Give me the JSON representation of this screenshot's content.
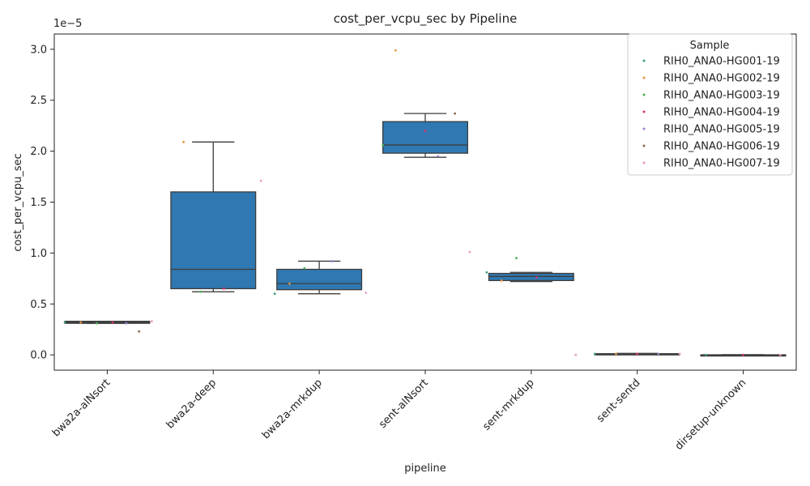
{
  "chart_data": {
    "type": "box",
    "title": "cost_per_vcpu_sec by Pipeline",
    "xlabel": "pipeline",
    "ylabel": "cost_per_vcpu_sec",
    "y_multiplier_label": "1e−5",
    "ylim": [
      -0.15,
      3.15
    ],
    "yticks": [
      0.0,
      0.5,
      1.0,
      1.5,
      2.0,
      2.5,
      3.0
    ],
    "ytick_labels": [
      "0.0",
      "0.5",
      "1.0",
      "1.5",
      "2.0",
      "2.5",
      "3.0"
    ],
    "categories": [
      "bwa2a-alNsort",
      "bwa2a-deep",
      "bwa2a-mrkdup",
      "sent-alNsort",
      "sent-mrkdup",
      "sent-sentd",
      "dirsetup-unknown"
    ],
    "box_color": "#2f78b1",
    "boxes": [
      {
        "q1": 0.31,
        "median": 0.32,
        "q3": 0.33,
        "whisker_low": 0.31,
        "whisker_high": 0.33
      },
      {
        "q1": 0.65,
        "median": 0.84,
        "q3": 1.6,
        "whisker_low": 0.62,
        "whisker_high": 2.09
      },
      {
        "q1": 0.64,
        "median": 0.7,
        "q3": 0.84,
        "whisker_low": 0.6,
        "whisker_high": 0.92
      },
      {
        "q1": 1.98,
        "median": 2.06,
        "q3": 2.29,
        "whisker_low": 1.94,
        "whisker_high": 2.37
      },
      {
        "q1": 0.73,
        "median": 0.77,
        "q3": 0.8,
        "whisker_low": 0.72,
        "whisker_high": 0.81
      },
      {
        "q1": 0.005,
        "median": 0.008,
        "q3": 0.012,
        "whisker_low": 0.003,
        "whisker_high": 0.015
      },
      {
        "q1": -0.003,
        "median": -0.002,
        "q3": 0.001,
        "whisker_low": -0.004,
        "whisker_high": 0.002
      }
    ],
    "legend": {
      "title": "Sample",
      "placement": "top-right",
      "entries": [
        {
          "name": "RIH0_ANA0-HG001-19",
          "color": "#3c9c78"
        },
        {
          "name": "RIH0_ANA0-HG002-19",
          "color": "#e8923a"
        },
        {
          "name": "RIH0_ANA0-HG003-19",
          "color": "#4caf50"
        },
        {
          "name": "RIH0_ANA0-HG004-19",
          "color": "#d6336c"
        },
        {
          "name": "RIH0_ANA0-HG005-19",
          "color": "#9b7fc9"
        },
        {
          "name": "RIH0_ANA0-HG006-19",
          "color": "#8c6a4f"
        },
        {
          "name": "RIH0_ANA0-HG007-19",
          "color": "#e79ac6"
        }
      ]
    },
    "points": [
      {
        "cat": 0,
        "sample": 0,
        "y": 0.32,
        "dx": -0.4
      },
      {
        "cat": 0,
        "sample": 1,
        "y": 0.32,
        "dx": -0.25
      },
      {
        "cat": 0,
        "sample": 2,
        "y": 0.31,
        "dx": -0.1
      },
      {
        "cat": 0,
        "sample": 3,
        "y": 0.32,
        "dx": 0.05
      },
      {
        "cat": 0,
        "sample": 4,
        "y": 0.31,
        "dx": 0.18
      },
      {
        "cat": 0,
        "sample": 5,
        "y": 0.23,
        "dx": 0.3
      },
      {
        "cat": 0,
        "sample": 6,
        "y": 0.33,
        "dx": 0.42
      },
      {
        "cat": 1,
        "sample": 1,
        "y": 2.09,
        "dx": -0.28
      },
      {
        "cat": 1,
        "sample": 2,
        "y": 0.62,
        "dx": -0.12
      },
      {
        "cat": 1,
        "sample": 3,
        "y": 0.65,
        "dx": 0.1
      },
      {
        "cat": 1,
        "sample": 6,
        "y": 1.71,
        "dx": 0.45
      },
      {
        "cat": 2,
        "sample": 0,
        "y": 0.6,
        "dx": -0.42
      },
      {
        "cat": 2,
        "sample": 1,
        "y": 0.7,
        "dx": -0.28
      },
      {
        "cat": 2,
        "sample": 2,
        "y": 0.85,
        "dx": -0.14
      },
      {
        "cat": 2,
        "sample": 4,
        "y": 0.92,
        "dx": 0.12
      },
      {
        "cat": 2,
        "sample": 6,
        "y": 0.61,
        "dx": 0.44
      },
      {
        "cat": 3,
        "sample": 1,
        "y": 2.99,
        "dx": -0.28
      },
      {
        "cat": 3,
        "sample": 2,
        "y": 2.06,
        "dx": -0.4
      },
      {
        "cat": 3,
        "sample": 3,
        "y": 2.2,
        "dx": 0.0
      },
      {
        "cat": 3,
        "sample": 4,
        "y": 1.95,
        "dx": 0.12
      },
      {
        "cat": 3,
        "sample": 5,
        "y": 2.37,
        "dx": 0.28
      },
      {
        "cat": 3,
        "sample": 6,
        "y": 1.01,
        "dx": 0.42
      },
      {
        "cat": 4,
        "sample": 0,
        "y": 0.81,
        "dx": -0.42
      },
      {
        "cat": 4,
        "sample": 1,
        "y": 0.73,
        "dx": -0.28
      },
      {
        "cat": 4,
        "sample": 2,
        "y": 0.95,
        "dx": -0.14
      },
      {
        "cat": 4,
        "sample": 3,
        "y": 0.76,
        "dx": 0.05
      },
      {
        "cat": 4,
        "sample": 6,
        "y": 0.0,
        "dx": 0.42
      },
      {
        "cat": 5,
        "sample": 0,
        "y": 0.01,
        "dx": -0.4
      },
      {
        "cat": 5,
        "sample": 1,
        "y": 0.01,
        "dx": -0.2
      },
      {
        "cat": 5,
        "sample": 3,
        "y": 0.01,
        "dx": 0.0
      },
      {
        "cat": 5,
        "sample": 4,
        "y": 0.01,
        "dx": 0.2
      },
      {
        "cat": 5,
        "sample": 6,
        "y": 0.01,
        "dx": 0.4
      },
      {
        "cat": 6,
        "sample": 0,
        "y": 0.0,
        "dx": -0.35
      },
      {
        "cat": 6,
        "sample": 3,
        "y": 0.0,
        "dx": 0.0
      },
      {
        "cat": 6,
        "sample": 6,
        "y": 0.0,
        "dx": 0.35
      }
    ]
  }
}
